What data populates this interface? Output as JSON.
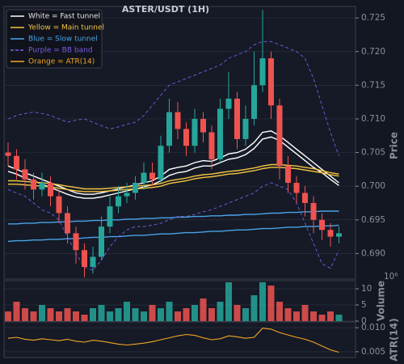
{
  "chart_data": [
    {
      "type": "candlestick",
      "title": "ASTER/USDT (1H)",
      "ylabel": "Price",
      "ylim": [
        0.6862,
        0.7267
      ],
      "yticks": [
        {
          "value": 0.69,
          "label": "0.690"
        },
        0.695,
        {
          "value": 0.7,
          "label": "0.700"
        },
        0.705,
        {
          "value": 0.71,
          "label": "0.710"
        },
        0.715,
        {
          "value": 0.72,
          "label": "0.720"
        },
        0.725
      ],
      "grid": true,
      "legend": "upper left",
      "up_color": "#26a69a",
      "down_color": "#ef5350",
      "open": [
        0.705,
        0.7045,
        0.7025,
        0.701,
        0.6995,
        0.7005,
        0.6985,
        0.696,
        0.693,
        0.6905,
        0.688,
        0.6895,
        0.694,
        0.697,
        0.6985,
        0.699,
        0.7005,
        0.702,
        0.701,
        0.706,
        0.711,
        0.7085,
        0.706,
        0.71,
        0.708,
        0.704,
        0.7115,
        0.713,
        0.707,
        0.71,
        0.715,
        0.719,
        0.712,
        0.703,
        0.7005,
        0.699,
        0.6975,
        0.695,
        0.6935,
        0.6925
      ],
      "high": [
        0.7065,
        0.7055,
        0.704,
        0.702,
        0.702,
        0.7015,
        0.6995,
        0.697,
        0.694,
        0.6915,
        0.691,
        0.6955,
        0.6985,
        0.7,
        0.7005,
        0.7015,
        0.7035,
        0.7035,
        0.7075,
        0.713,
        0.7125,
        0.7095,
        0.7115,
        0.711,
        0.709,
        0.713,
        0.717,
        0.714,
        0.712,
        0.72,
        0.7262,
        0.72,
        0.713,
        0.7045,
        0.7015,
        0.7,
        0.6985,
        0.696,
        0.6945,
        0.694
      ],
      "low": [
        0.703,
        0.701,
        0.6995,
        0.698,
        0.6985,
        0.697,
        0.6945,
        0.6915,
        0.6885,
        0.6865,
        0.687,
        0.689,
        0.693,
        0.696,
        0.6975,
        0.698,
        0.6995,
        0.7,
        0.7005,
        0.705,
        0.707,
        0.7045,
        0.705,
        0.7065,
        0.7025,
        0.7035,
        0.71,
        0.7055,
        0.706,
        0.709,
        0.714,
        0.71,
        0.701,
        0.699,
        0.6975,
        0.6955,
        0.693,
        0.692,
        0.691,
        0.6915
      ],
      "close": [
        0.7045,
        0.7025,
        0.701,
        0.6995,
        0.7005,
        0.6985,
        0.696,
        0.693,
        0.6905,
        0.688,
        0.6895,
        0.694,
        0.697,
        0.6985,
        0.699,
        0.7005,
        0.702,
        0.701,
        0.706,
        0.711,
        0.7085,
        0.706,
        0.71,
        0.708,
        0.704,
        0.7115,
        0.713,
        0.707,
        0.71,
        0.715,
        0.719,
        0.712,
        0.703,
        0.7005,
        0.699,
        0.6975,
        0.695,
        0.6935,
        0.6925,
        0.693
      ],
      "series": [
        {
          "name": "White = Fast tunnel",
          "color": "#ffffff",
          "style": "solid",
          "lines": [
            [
              0.703,
              0.7025,
              0.702,
              0.7015,
              0.701,
              0.7005,
              0.7,
              0.6995,
              0.699,
              0.6988,
              0.6988,
              0.699,
              0.6993,
              0.6996,
              0.6999,
              0.7002,
              0.7005,
              0.7008,
              0.7015,
              0.7025,
              0.7028,
              0.703,
              0.7035,
              0.7038,
              0.7037,
              0.7042,
              0.7048,
              0.705,
              0.7055,
              0.7065,
              0.708,
              0.7082,
              0.7075,
              0.7065,
              0.7055,
              0.7045,
              0.7035,
              0.7025,
              0.7015,
              0.7005
            ],
            [
              0.7022,
              0.7018,
              0.7012,
              0.7008,
              0.7003,
              0.6998,
              0.6993,
              0.6988,
              0.6984,
              0.6982,
              0.6982,
              0.6984,
              0.6987,
              0.699,
              0.6993,
              0.6996,
              0.6999,
              0.7002,
              0.7008,
              0.7016,
              0.702,
              0.7022,
              0.7027,
              0.703,
              0.703,
              0.7035,
              0.704,
              0.7042,
              0.7047,
              0.7056,
              0.707,
              0.7073,
              0.7068,
              0.7058,
              0.7048,
              0.7038,
              0.7028,
              0.702,
              0.701,
              0.7001
            ]
          ]
        },
        {
          "name": "Yellow = Main tunnel",
          "color": "#f5c542",
          "style": "solid",
          "lines": [
            [
              0.7008,
              0.7008,
              0.7007,
              0.7006,
              0.7005,
              0.7004,
              0.7002,
              0.7,
              0.6998,
              0.6996,
              0.6996,
              0.6996,
              0.6997,
              0.6998,
              0.6999,
              0.7,
              0.7001,
              0.7002,
              0.7004,
              0.7008,
              0.701,
              0.7012,
              0.7015,
              0.7017,
              0.7018,
              0.702,
              0.7022,
              0.7023,
              0.7025,
              0.7027,
              0.703,
              0.7032,
              0.7032,
              0.7031,
              0.703,
              0.7028,
              0.7026,
              0.7023,
              0.702,
              0.7018
            ],
            [
              0.7003,
              0.7003,
              0.7002,
              0.7001,
              0.7,
              0.6999,
              0.6997,
              0.6995,
              0.6993,
              0.6992,
              0.6992,
              0.6992,
              0.6993,
              0.6994,
              0.6995,
              0.6996,
              0.6997,
              0.6998,
              0.7,
              0.7004,
              0.7006,
              0.7008,
              0.7011,
              0.7013,
              0.7014,
              0.7016,
              0.7018,
              0.7019,
              0.7021,
              0.7023,
              0.7026,
              0.7028,
              0.7028,
              0.7027,
              0.7026,
              0.7024,
              0.7022,
              0.702,
              0.7017,
              0.7015
            ]
          ]
        },
        {
          "name": "Blue = Slow tunnel",
          "color": "#4aa3e8",
          "style": "solid",
          "lines": [
            [
              0.6944,
              0.6944,
              0.6945,
              0.6945,
              0.6946,
              0.6946,
              0.6947,
              0.6947,
              0.6948,
              0.6948,
              0.6949,
              0.6949,
              0.695,
              0.695,
              0.6951,
              0.6951,
              0.6952,
              0.6952,
              0.6953,
              0.6953,
              0.6954,
              0.6954,
              0.6955,
              0.6955,
              0.6956,
              0.6956,
              0.6957,
              0.6957,
              0.6958,
              0.6958,
              0.6959,
              0.696,
              0.696,
              0.6961,
              0.6961,
              0.6962,
              0.6962,
              0.6963,
              0.6963,
              0.6963
            ],
            [
              0.6918,
              0.6919,
              0.6919,
              0.692,
              0.692,
              0.6921,
              0.6921,
              0.6922,
              0.6922,
              0.6923,
              0.6924,
              0.6924,
              0.6925,
              0.6925,
              0.6926,
              0.6927,
              0.6927,
              0.6928,
              0.6929,
              0.6929,
              0.693,
              0.6931,
              0.6931,
              0.6932,
              0.6933,
              0.6933,
              0.6934,
              0.6935,
              0.6935,
              0.6936,
              0.6937,
              0.6937,
              0.6938,
              0.6939,
              0.6939,
              0.694,
              0.694,
              0.6941,
              0.6941,
              0.6942
            ]
          ]
        },
        {
          "name": "Purple = BB band",
          "color": "#7b5ce6",
          "style": "dashed",
          "lines": [
            [
              0.71,
              0.7105,
              0.7108,
              0.711,
              0.7108,
              0.7105,
              0.71,
              0.7095,
              0.7098,
              0.71,
              0.7095,
              0.709,
              0.7085,
              0.7088,
              0.7092,
              0.7095,
              0.7105,
              0.712,
              0.7135,
              0.715,
              0.7155,
              0.716,
              0.7165,
              0.717,
              0.7175,
              0.718,
              0.719,
              0.7195,
              0.72,
              0.721,
              0.7215,
              0.7215,
              0.721,
              0.7205,
              0.72,
              0.719,
              0.716,
              0.712,
              0.708,
              0.7045
            ],
            [
              0.6995,
              0.699,
              0.6985,
              0.6975,
              0.6965,
              0.696,
              0.695,
              0.6925,
              0.69,
              0.688,
              0.6875,
              0.689,
              0.691,
              0.6925,
              0.6935,
              0.694,
              0.694,
              0.6942,
              0.6945,
              0.695,
              0.6955,
              0.6955,
              0.6958,
              0.6962,
              0.6965,
              0.697,
              0.6975,
              0.698,
              0.6985,
              0.699,
              0.7,
              0.7005,
              0.7,
              0.6995,
              0.6975,
              0.6945,
              0.6915,
              0.6885,
              0.6878,
              0.6905
            ]
          ]
        }
      ]
    },
    {
      "type": "bar",
      "ylabel": "Volume",
      "offset_label": "10⁶",
      "ylim": [
        0,
        12.5
      ],
      "yticks": [
        0,
        5,
        10
      ],
      "values": [
        3,
        6,
        4,
        3,
        5,
        4,
        3,
        4,
        3,
        2,
        4,
        5,
        3,
        4,
        6,
        4,
        3,
        5,
        4,
        6,
        3,
        4,
        5,
        7,
        4,
        6,
        12,
        5,
        4,
        8,
        12,
        11,
        6,
        4,
        3,
        5,
        3,
        2,
        3,
        2
      ]
    },
    {
      "type": "line",
      "ylabel": "ATR(14)",
      "ylim": [
        0.0038,
        0.0112
      ],
      "yticks": [
        0.005,
        {
          "value": 0.01,
          "label": "0.010"
        }
      ],
      "series": [
        {
          "name": "Orange = ATR(14)",
          "color": "#f5a623",
          "values": [
            0.0078,
            0.008,
            0.0076,
            0.0074,
            0.0077,
            0.0075,
            0.0073,
            0.0076,
            0.0072,
            0.007,
            0.0074,
            0.0072,
            0.0069,
            0.0066,
            0.0064,
            0.0066,
            0.0068,
            0.0071,
            0.0075,
            0.0079,
            0.0083,
            0.0086,
            0.0084,
            0.0079,
            0.0075,
            0.0077,
            0.0083,
            0.0081,
            0.0078,
            0.008,
            0.0099,
            0.0097,
            0.009,
            0.0085,
            0.008,
            0.0076,
            0.007,
            0.0062,
            0.0054,
            0.0049
          ]
        }
      ]
    }
  ]
}
